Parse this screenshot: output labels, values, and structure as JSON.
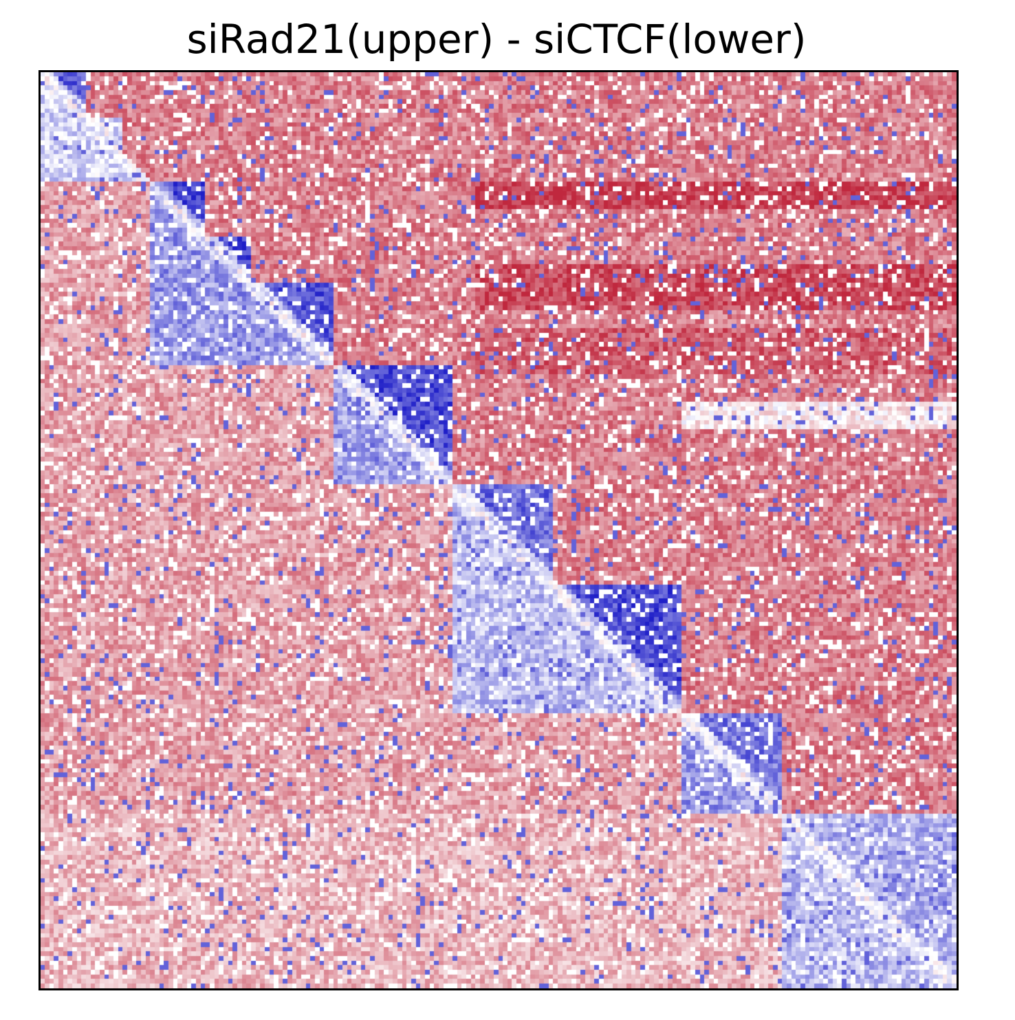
{
  "chart_data": {
    "type": "heatmap",
    "title": "siRad21(upper) - siCTCF(lower)",
    "xlabel": "",
    "ylabel": "",
    "grid": false,
    "legend": "none",
    "colormap": {
      "negative": "#1f1fc8",
      "zero": "#ffffff",
      "positive": "#c0283e"
    },
    "value_range": [
      -1,
      1
    ],
    "matrix_bins": 200,
    "upper_triangle": {
      "label": "siRad21",
      "background_value": 0.6,
      "blocks": [
        {
          "range": [
            0,
            10
          ],
          "value": -0.7
        },
        {
          "range": [
            10,
            18
          ],
          "value": -0.2
        },
        {
          "range": [
            24,
            36
          ],
          "value": -0.85
        },
        {
          "range": [
            36,
            46
          ],
          "value": -0.8
        },
        {
          "range": [
            46,
            64
          ],
          "value": -0.75
        },
        {
          "range": [
            64,
            90
          ],
          "value": -0.8
        },
        {
          "range": [
            90,
            112
          ],
          "value": -0.65
        },
        {
          "range": [
            112,
            140
          ],
          "value": -0.8
        },
        {
          "range": [
            140,
            162
          ],
          "value": -0.6
        },
        {
          "range": [
            162,
            200
          ],
          "value": -0.35
        }
      ],
      "bands": [
        {
          "rows": [
            24,
            30
          ],
          "cols": [
            95,
            200
          ],
          "value": 0.9
        },
        {
          "rows": [
            42,
            52
          ],
          "cols": [
            95,
            200
          ],
          "value": 0.85
        },
        {
          "rows": [
            56,
            66
          ],
          "cols": [
            95,
            200
          ],
          "value": 0.75
        },
        {
          "rows": [
            72,
            78
          ],
          "cols": [
            140,
            200
          ],
          "value": 0.1
        }
      ]
    },
    "lower_triangle": {
      "label": "siCTCF",
      "background_value": 0.45,
      "blocks": [
        {
          "range": [
            0,
            24
          ],
          "value": -0.2
        },
        {
          "range": [
            24,
            64
          ],
          "value": -0.45
        },
        {
          "range": [
            64,
            90
          ],
          "value": -0.4
        },
        {
          "range": [
            90,
            140
          ],
          "value": -0.3
        },
        {
          "range": [
            140,
            162
          ],
          "value": -0.45
        },
        {
          "range": [
            162,
            200
          ],
          "value": -0.3
        }
      ],
      "bands": [
        {
          "rows": [
            118,
            126
          ],
          "cols": [
            90,
            130
          ],
          "value": -0.55
        },
        {
          "rows": [
            162,
            200
          ],
          "cols": [
            0,
            162
          ],
          "value": 0.35
        }
      ]
    }
  }
}
